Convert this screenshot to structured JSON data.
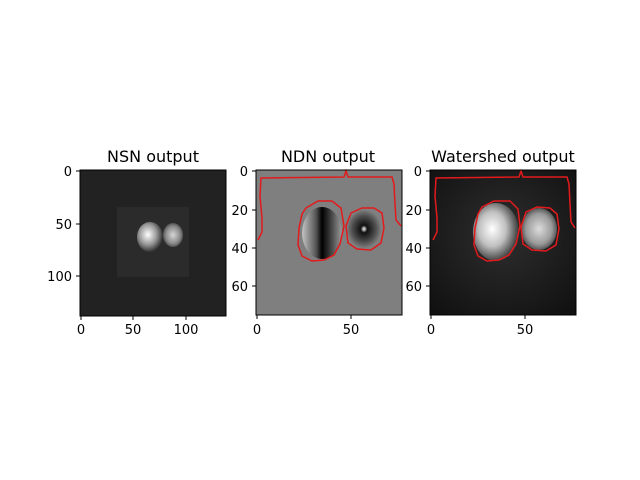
{
  "panels": [
    {
      "title": "NSN output",
      "x_ticks": [
        0,
        50,
        100
      ],
      "y_ticks": [
        0,
        50,
        100
      ],
      "x_range": [
        0,
        138
      ],
      "y_range": [
        0,
        138
      ]
    },
    {
      "title": "NDN output",
      "x_ticks": [
        0,
        50
      ],
      "y_ticks": [
        0,
        20,
        40,
        60
      ],
      "x_range": [
        0,
        76
      ],
      "y_range": [
        0,
        76
      ]
    },
    {
      "title": "Watershed output",
      "x_ticks": [
        0,
        50
      ],
      "y_ticks": [
        0,
        20,
        40,
        60
      ],
      "x_range": [
        0,
        76
      ],
      "y_range": [
        0,
        76
      ]
    }
  ],
  "colors": {
    "contour": "#e31a1c",
    "axes": "#000000"
  }
}
